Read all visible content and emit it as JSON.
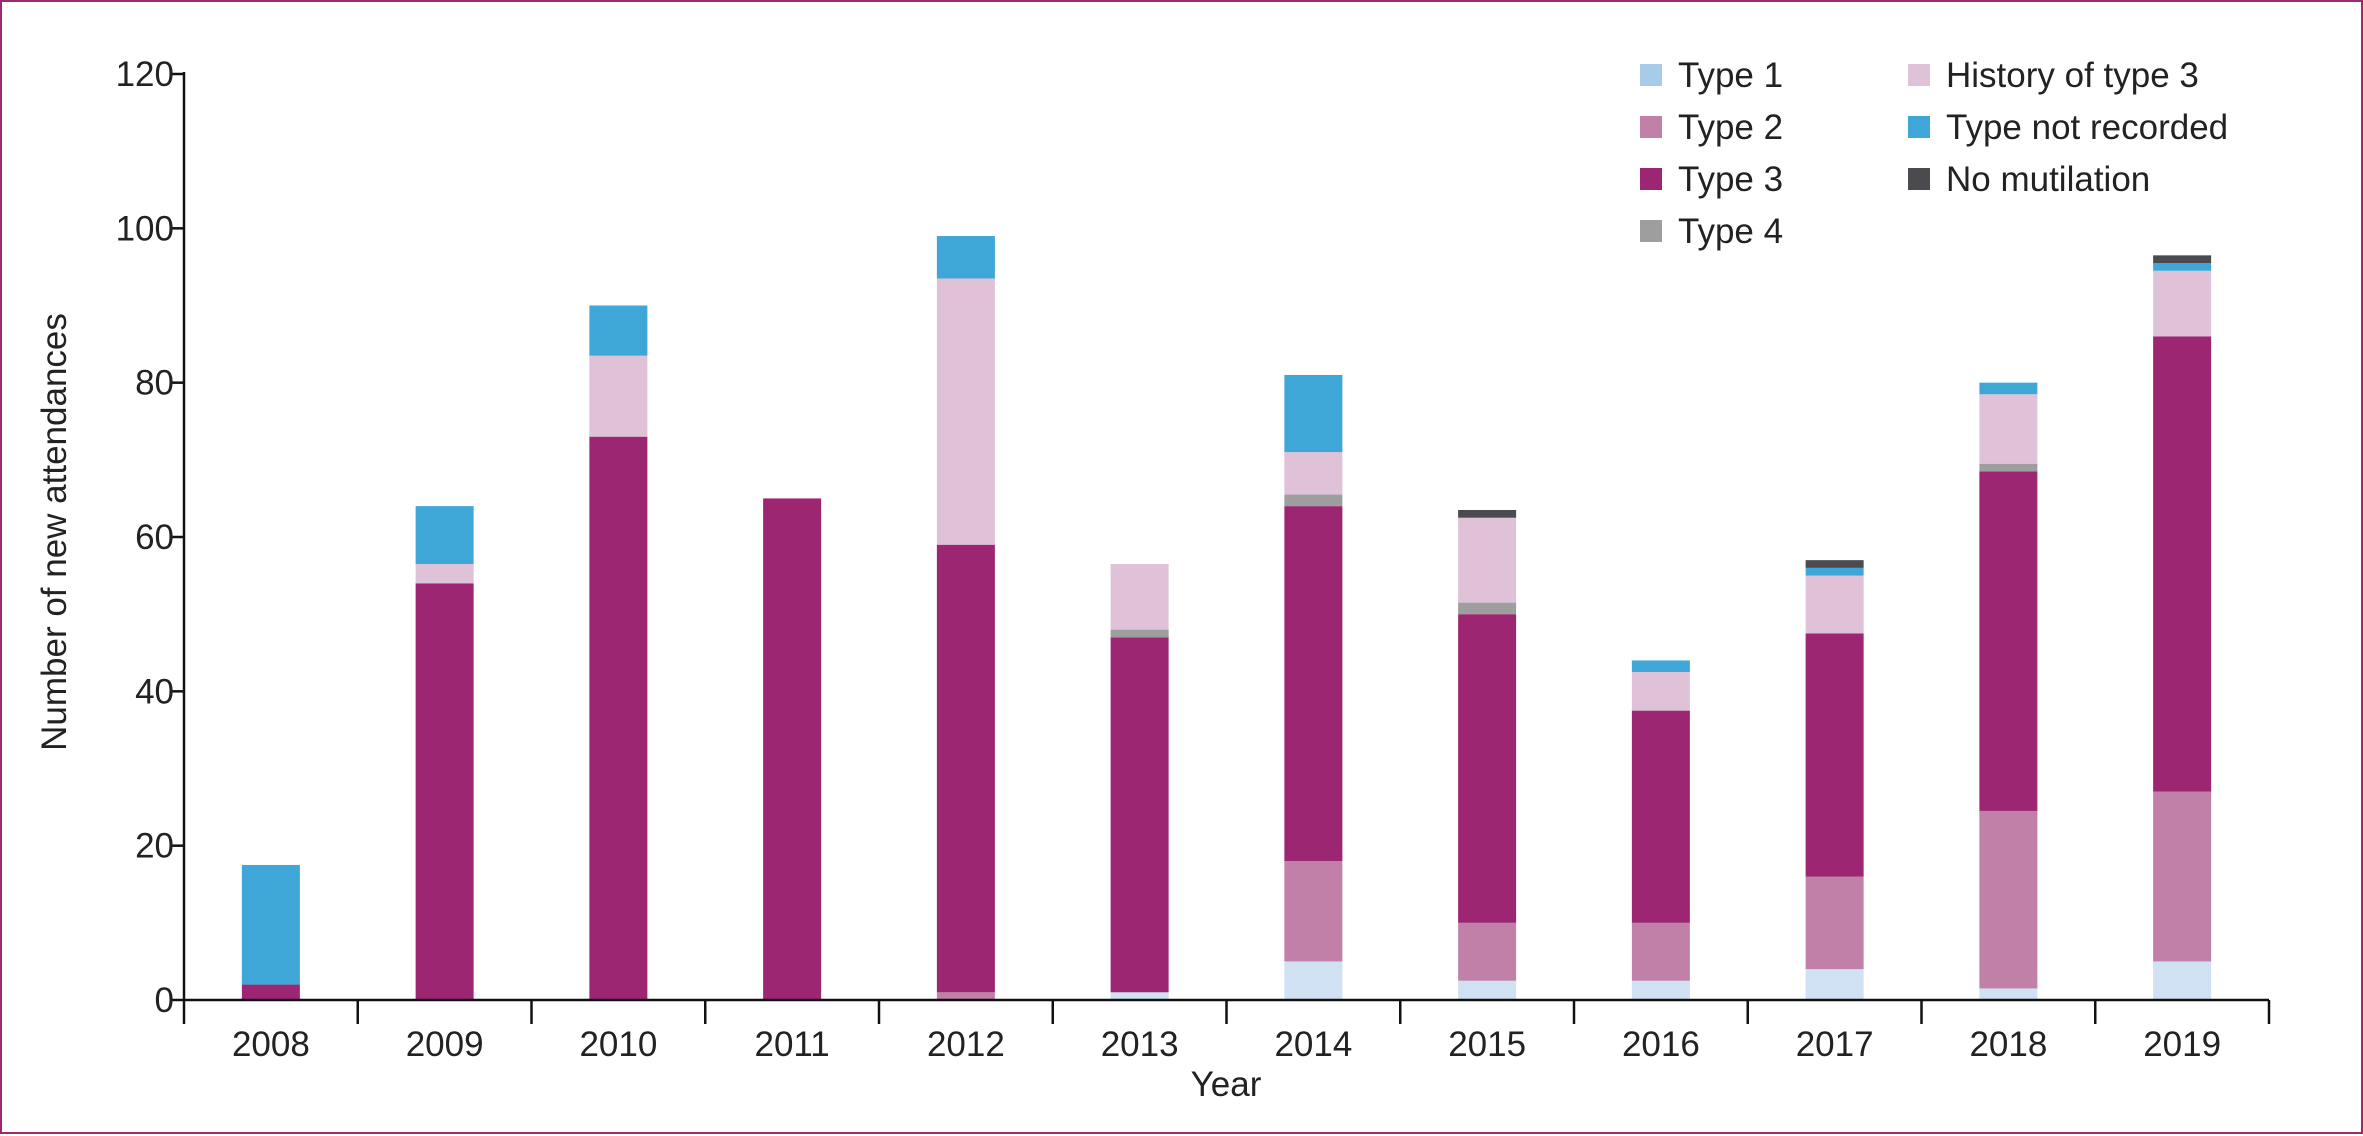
{
  "chart_data": {
    "type": "bar",
    "stacked": true,
    "title": "",
    "xlabel": "Year",
    "ylabel": "Number of new attendances",
    "ylim": [
      0,
      120
    ],
    "yticks": [
      0,
      20,
      40,
      60,
      80,
      100,
      120
    ],
    "grid": false,
    "legend_position": "top-right",
    "categories": [
      "2008",
      "2009",
      "2010",
      "2011",
      "2012",
      "2013",
      "2014",
      "2015",
      "2016",
      "2017",
      "2018",
      "2019"
    ],
    "series": [
      {
        "name": "Type 1",
        "color": "#cfe1f3",
        "legend_color": "#a8cbe9",
        "values": [
          0,
          0,
          0,
          0,
          0,
          1,
          5,
          2.5,
          2.5,
          4,
          1.5,
          5
        ]
      },
      {
        "name": "Type 2",
        "color": "#c080a8",
        "values": [
          0,
          0,
          0,
          0,
          1,
          0,
          13,
          7.5,
          7.5,
          12,
          23,
          22
        ]
      },
      {
        "name": "Type 3",
        "color": "#9c2672",
        "values": [
          2,
          54,
          73,
          65,
          58,
          46,
          46,
          40,
          27.5,
          31.5,
          44,
          59
        ]
      },
      {
        "name": "Type 4",
        "color": "#9e9e9e",
        "values": [
          0,
          0,
          0,
          0,
          0,
          1,
          1.5,
          1.5,
          0,
          0,
          1,
          0
        ]
      },
      {
        "name": "History of type 3",
        "color": "#dfc1d8",
        "values": [
          0,
          2.5,
          10.5,
          0,
          34.5,
          8.5,
          5.5,
          11,
          5,
          7.5,
          9,
          8.5
        ]
      },
      {
        "name": "Type not recorded",
        "color": "#3fa6d8",
        "values": [
          15.5,
          7.5,
          6.5,
          0,
          5.5,
          0,
          10,
          0,
          1.5,
          1,
          1.5,
          1
        ]
      },
      {
        "name": "No mutilation",
        "color": "#4a4a4f",
        "values": [
          0,
          0,
          0,
          0,
          0,
          0,
          0,
          1,
          0,
          1,
          0,
          1
        ]
      }
    ],
    "legend_columns": [
      [
        "Type 1",
        "Type 2",
        "Type 3",
        "Type 4"
      ],
      [
        "History of type 3",
        "Type not recorded",
        "No mutilation"
      ]
    ]
  }
}
